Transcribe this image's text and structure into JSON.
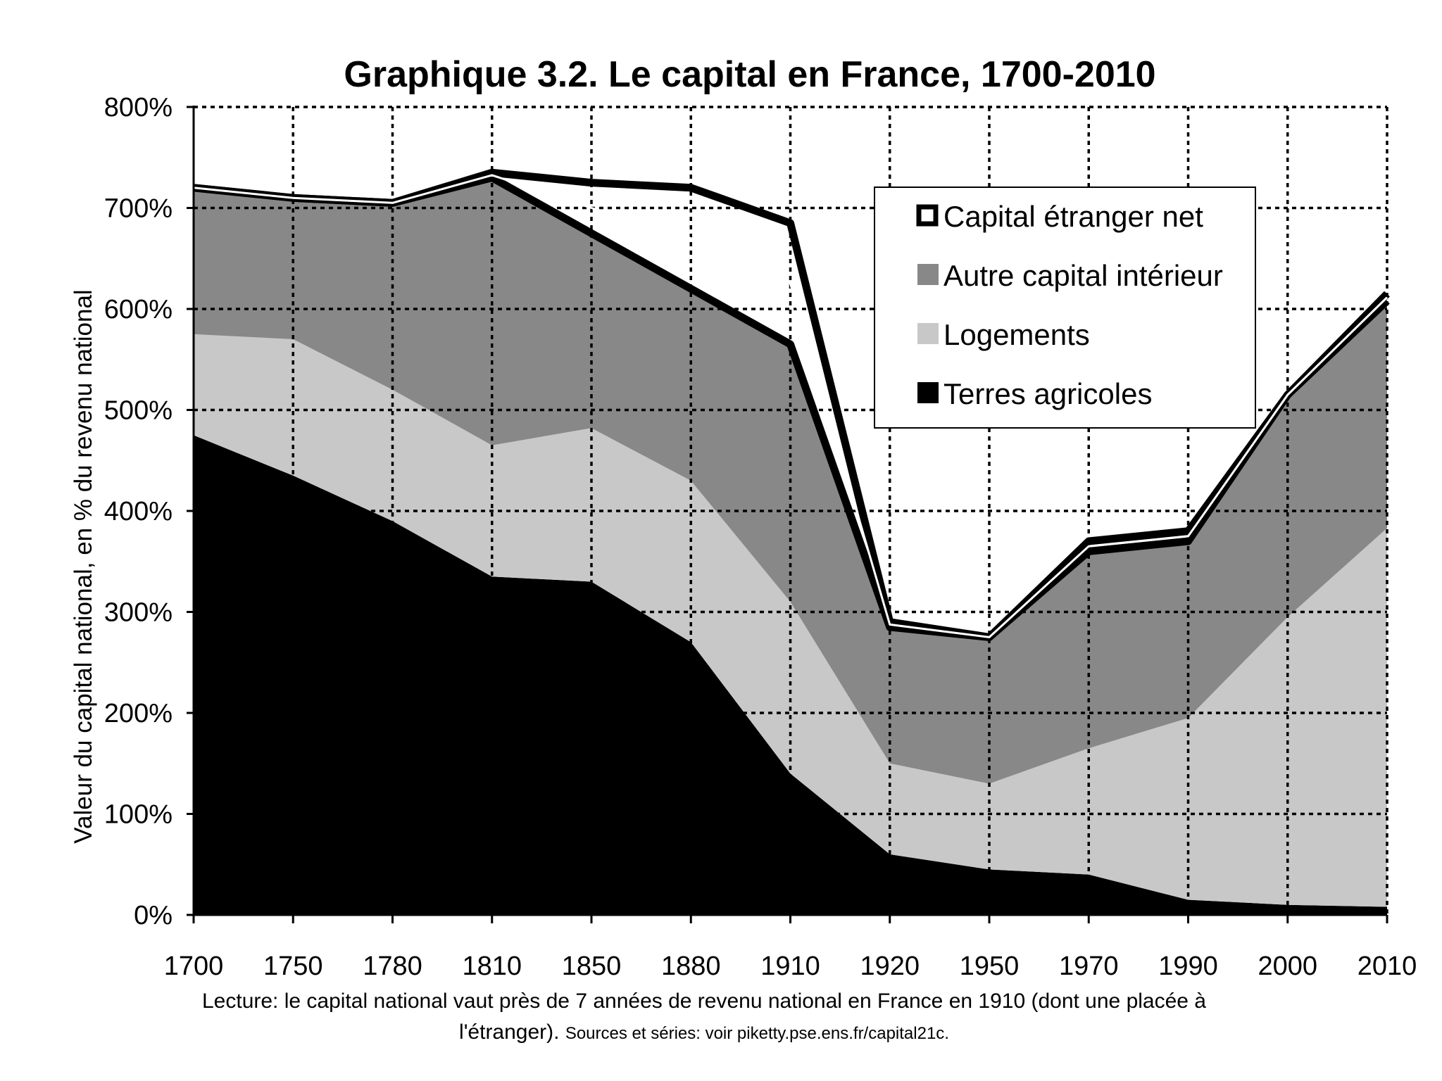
{
  "chart_data": {
    "type": "area",
    "title": "Graphique 3.2. Le capital en France, 1700-2010",
    "xlabel": "",
    "ylabel": "Valeur du capital national, en % du revenu national",
    "categories": [
      "1700",
      "1750",
      "1780",
      "1810",
      "1850",
      "1880",
      "1910",
      "1920",
      "1950",
      "1970",
      "1990",
      "2000",
      "2010"
    ],
    "y_ticks": [
      "0%",
      "100%",
      "200%",
      "300%",
      "400%",
      "500%",
      "600%",
      "700%",
      "800%"
    ],
    "ylim": [
      0,
      800
    ],
    "grid": true,
    "legend_position": "top-right",
    "series": [
      {
        "name": "Terres agricoles",
        "color": "#000000",
        "values": [
          475,
          435,
          390,
          335,
          330,
          270,
          140,
          60,
          45,
          40,
          15,
          10,
          8
        ]
      },
      {
        "name": "Logements",
        "color": "#c8c8c8",
        "values": [
          100,
          135,
          130,
          130,
          152,
          160,
          170,
          90,
          85,
          125,
          180,
          285,
          375
        ]
      },
      {
        "name": "Autre capital intérieur",
        "color": "#888888",
        "values": [
          145,
          140,
          185,
          265,
          193,
          190,
          255,
          135,
          145,
          195,
          175,
          220,
          225
        ]
      },
      {
        "name": "Capital étranger net",
        "color": "#ffffff",
        "values": [
          0,
          0,
          0,
          5,
          50,
          100,
          120,
          5,
          0,
          10,
          10,
          0,
          7
        ]
      }
    ],
    "note_main": "Lecture: le capital national vaut près de 7 années de revenu national en France en 1910 (dont une placée à",
    "note_line2": "l'étranger). ",
    "note_sources": "Sources et séries: voir piketty.pse.ens.fr/capital21c."
  }
}
